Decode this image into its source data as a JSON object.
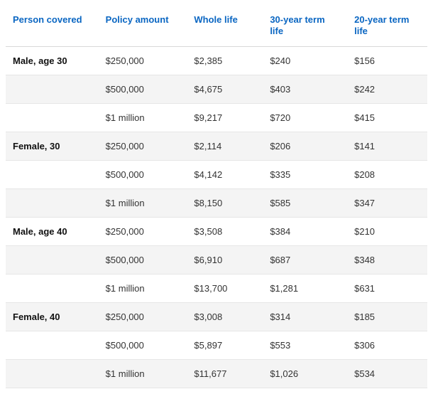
{
  "table": {
    "header_color": "#0a66c2",
    "columns": [
      "Person covered",
      "Policy amount",
      "Whole life",
      "30-year term life",
      "20-year term life"
    ],
    "groups": [
      {
        "person": "Male, age 30",
        "rows": [
          {
            "policy": "$250,000",
            "whole": "$2,385",
            "t30": "$240",
            "t20": "$156"
          },
          {
            "policy": "$500,000",
            "whole": "$4,675",
            "t30": "$403",
            "t20": "$242"
          },
          {
            "policy": "$1 million",
            "whole": "$9,217",
            "t30": "$720",
            "t20": "$415"
          }
        ]
      },
      {
        "person": "Female, 30",
        "rows": [
          {
            "policy": "$250,000",
            "whole": "$2,114",
            "t30": "$206",
            "t20": "$141"
          },
          {
            "policy": "$500,000",
            "whole": "$4,142",
            "t30": "$335",
            "t20": "$208"
          },
          {
            "policy": "$1 million",
            "whole": "$8,150",
            "t30": "$585",
            "t20": "$347"
          }
        ]
      },
      {
        "person": "Male, age 40",
        "rows": [
          {
            "policy": "$250,000",
            "whole": "$3,508",
            "t30": "$384",
            "t20": "$210"
          },
          {
            "policy": "$500,000",
            "whole": "$6,910",
            "t30": "$687",
            "t20": "$348"
          },
          {
            "policy": "$1 million",
            "whole": "$13,700",
            "t30": "$1,281",
            "t20": "$631"
          }
        ]
      },
      {
        "person": "Female, 40",
        "rows": [
          {
            "policy": "$250,000",
            "whole": "$3,008",
            "t30": "$314",
            "t20": "$185"
          },
          {
            "policy": "$500,000",
            "whole": "$5,897",
            "t30": "$553",
            "t20": "$306"
          },
          {
            "policy": "$1 million",
            "whole": "$11,677",
            "t30": "$1,026",
            "t20": "$534"
          }
        ]
      }
    ]
  }
}
